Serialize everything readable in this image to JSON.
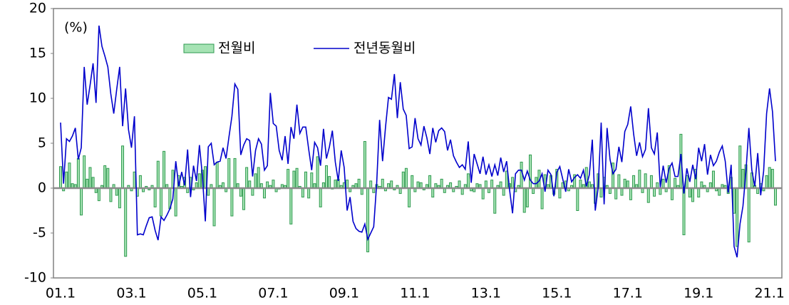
{
  "chart_data": {
    "type": "bar-line",
    "y_unit": "(%)",
    "categories": [
      "01.1",
      null,
      null,
      null,
      null,
      null,
      null,
      null,
      null,
      null,
      null,
      null,
      null,
      null,
      null,
      null,
      null,
      null,
      null,
      null,
      null,
      null,
      null,
      null,
      "03.1",
      null,
      null,
      null,
      null,
      null,
      null,
      null,
      null,
      null,
      null,
      null,
      null,
      null,
      null,
      null,
      null,
      null,
      null,
      null,
      null,
      null,
      null,
      null,
      "05.1",
      null,
      null,
      null,
      null,
      null,
      null,
      null,
      null,
      null,
      null,
      null,
      null,
      null,
      null,
      null,
      null,
      null,
      null,
      null,
      null,
      null,
      null,
      null,
      "07.1",
      null,
      null,
      null,
      null,
      null,
      null,
      null,
      null,
      null,
      null,
      null,
      null,
      null,
      null,
      null,
      null,
      null,
      null,
      null,
      null,
      null,
      null,
      null,
      "09.1",
      null,
      null,
      null,
      null,
      null,
      null,
      null,
      null,
      null,
      null,
      null,
      null,
      null,
      null,
      null,
      null,
      null,
      null,
      null,
      null,
      null,
      null,
      null,
      "11.1",
      null,
      null,
      null,
      null,
      null,
      null,
      null,
      null,
      null,
      null,
      null,
      null,
      null,
      null,
      null,
      null,
      null,
      null,
      null,
      null,
      null,
      null,
      null,
      "13.1",
      null,
      null,
      null,
      null,
      null,
      null,
      null,
      null,
      null,
      null,
      null,
      null,
      null,
      null,
      null,
      null,
      null,
      null,
      null,
      null,
      null,
      null,
      null,
      "15.1",
      null,
      null,
      null,
      null,
      null,
      null,
      null,
      null,
      null,
      null,
      null,
      null,
      null,
      null,
      null,
      null,
      null,
      null,
      null,
      null,
      null,
      null,
      null,
      "17.1",
      null,
      null,
      null,
      null,
      null,
      null,
      null,
      null,
      null,
      null,
      null,
      null,
      null,
      null,
      null,
      null,
      null,
      null,
      null,
      null,
      null,
      null,
      null,
      "19.1",
      null,
      null,
      null,
      null,
      null,
      null,
      null,
      null,
      null,
      null,
      null,
      null,
      null,
      null,
      null,
      null,
      null,
      null,
      null,
      null,
      null,
      null,
      null,
      "21.1",
      null,
      null
    ],
    "series": [
      {
        "name": "전월비",
        "kind": "bar",
        "color": "#a6e3b4",
        "edge": "#2f9a4f",
        "values": [
          2.4,
          -0.3,
          1.8,
          2.8,
          0.5,
          0.4,
          3.3,
          -3.0,
          3.6,
          1.0,
          2.3,
          1.2,
          -0.5,
          -1.4,
          0.3,
          2.5,
          2.2,
          -1.5,
          0.4,
          -0.8,
          -2.2,
          4.7,
          -7.6,
          0.3,
          -0.3,
          1.8,
          -0.9,
          1.4,
          -0.4,
          0.2,
          -0.2,
          0.3,
          -2.1,
          3.0,
          -3.1,
          4.1,
          0.4,
          -2.3,
          2.0,
          -3.1,
          1.4,
          0.2,
          1.2,
          -0.5,
          1.2,
          -0.2,
          0.6,
          1.6,
          2.0,
          2.4,
          -0.8,
          0.4,
          -4.2,
          2.9,
          0.3,
          0.6,
          -0.4,
          3.3,
          -3.1,
          3.3,
          0.5,
          -0.9,
          -2.4,
          2.3,
          0.8,
          -0.8,
          1.6,
          2.3,
          0.5,
          -1.1,
          0.7,
          0.3,
          0.9,
          -0.4,
          -0.1,
          0.4,
          0.3,
          2.1,
          -4.0,
          1.9,
          2.2,
          0.2,
          -1.0,
          1.8,
          -1.1,
          1.7,
          0.5,
          3.5,
          -2.1,
          0.6,
          2.5,
          1.3,
          -0.1,
          0.9,
          1.0,
          0.3,
          0.6,
          0.9,
          -0.4,
          0.3,
          0.5,
          1.0,
          -0.7,
          5.2,
          -7.1,
          0.8,
          -0.5,
          0.4,
          0.2,
          1.0,
          -0.3,
          0.5,
          0.8,
          -0.2,
          0.3,
          -0.6,
          1.8,
          2.2,
          -2.1,
          1.4,
          -0.4,
          0.7,
          0.6,
          -0.2,
          0.4,
          1.4,
          -1.0,
          0.5,
          0.3,
          1.0,
          -0.5,
          0.3,
          0.6,
          -0.4,
          0.2,
          0.8,
          -0.7,
          0.4,
          1.6,
          -0.3,
          -0.4,
          0.5,
          0.4,
          -1.2,
          0.8,
          -0.5,
          0.9,
          -2.8,
          0.3,
          0.7,
          -0.8,
          1.9,
          0.5,
          1.2,
          -0.4,
          0.3,
          2.9,
          -2.7,
          -2.1,
          3.7,
          -0.6,
          1.2,
          2.0,
          -2.3,
          1.5,
          0.4,
          1.4,
          -0.7,
          2.1,
          -1.1,
          0.6,
          0.8,
          -0.3,
          0.3,
          1.5,
          -2.5,
          0.9,
          0.4,
          2.3,
          0.7,
          0.4,
          -1.7,
          1.6,
          -1.0,
          1.2,
          0.3,
          -0.6,
          2.8,
          -1.2,
          1.5,
          -0.8,
          1.0,
          0.8,
          -1.3,
          1.4,
          0.4,
          2.0,
          -0.5,
          1.6,
          -1.6,
          1.4,
          -0.9,
          0.6,
          -0.7,
          1.0,
          -0.4,
          2.5,
          -1.3,
          1.1,
          0.3,
          6.0,
          -5.2,
          1.4,
          -1.0,
          -1.5,
          2.1,
          -1.0,
          0.7,
          0.3,
          -0.4,
          0.6,
          1.9,
          -0.3,
          -0.8,
          0.4,
          0.3,
          -0.6,
          1.2,
          -2.8,
          -6.5,
          4.7,
          2.1,
          2.6,
          -6.0,
          1.7,
          0.3,
          -0.6,
          0.5,
          -0.3,
          1.4,
          2.3,
          2.1,
          -1.9
        ]
      },
      {
        "name": "전년동월비",
        "kind": "line",
        "color": "#0000cc",
        "values": [
          7.3,
          0.5,
          5.5,
          5.2,
          5.8,
          6.7,
          3.2,
          4.5,
          13.5,
          9.3,
          11.5,
          13.9,
          9.5,
          18.1,
          15.8,
          14.7,
          13.5,
          10.5,
          8.3,
          11.0,
          13.5,
          6.9,
          11.1,
          6.5,
          4.5,
          8.0,
          -5.2,
          -5.1,
          -5.2,
          -4.2,
          -3.3,
          -3.2,
          -4.7,
          -5.8,
          -3.2,
          -3.6,
          -3.0,
          -2.3,
          -1.2,
          3.0,
          0.2,
          1.8,
          0.3,
          4.3,
          -1.0,
          2.5,
          0.8,
          4.8,
          1.4,
          -3.7,
          4.6,
          5.0,
          2.6,
          2.9,
          3.0,
          4.5,
          3.3,
          5.7,
          8.0,
          11.6,
          11.0,
          3.7,
          4.8,
          5.5,
          5.3,
          1.3,
          4.2,
          5.5,
          4.9,
          2.0,
          2.5,
          10.6,
          7.2,
          6.9,
          4.2,
          3.1,
          5.8,
          2.7,
          6.8,
          5.5,
          9.3,
          6.1,
          6.8,
          6.8,
          4.3,
          2.0,
          5.1,
          4.5,
          2.5,
          6.6,
          3.3,
          4.6,
          6.4,
          2.9,
          0.8,
          4.2,
          2.3,
          -2.5,
          -1.0,
          -3.7,
          -4.5,
          -4.8,
          -4.9,
          -4.0,
          -5.7,
          -5.0,
          -4.3,
          0.5,
          7.6,
          3.0,
          6.8,
          10.1,
          9.9,
          12.7,
          7.8,
          11.8,
          8.8,
          8.1,
          4.4,
          4.6,
          7.8,
          5.5,
          4.8,
          6.9,
          5.6,
          3.8,
          6.7,
          5.1,
          6.4,
          6.7,
          6.3,
          4.2,
          5.4,
          3.6,
          2.9,
          2.3,
          2.6,
          2.1,
          5.2,
          0.6,
          3.8,
          2.7,
          1.6,
          3.5,
          1.5,
          2.6,
          1.3,
          2.6,
          1.4,
          3.4,
          1.8,
          3.0,
          -0.2,
          -2.8,
          1.6,
          2.0,
          2.0,
          0.9,
          1.9,
          0.9,
          0.5,
          0.5,
          0.8,
          1.6,
          -0.4,
          2.0,
          1.5,
          -0.9,
          1.8,
          2.4,
          1.0,
          -0.4,
          2.1,
          0.7,
          1.2,
          1.5,
          1.1,
          2.0,
          0.2,
          1.5,
          5.4,
          -2.5,
          0.1,
          7.3,
          -1.8,
          6.7,
          3.2,
          1.6,
          2.1,
          4.6,
          2.9,
          6.3,
          7.1,
          9.1,
          6.0,
          3.6,
          5.1,
          3.5,
          4.3,
          8.9,
          4.5,
          3.8,
          6.2,
          0.1,
          2.5,
          0.6,
          2.2,
          2.8,
          1.3,
          1.3,
          3.8,
          -0.6,
          2.2,
          0.7,
          2.6,
          1.0,
          4.5,
          3.0,
          4.9,
          1.5,
          3.7,
          2.5,
          3.0,
          4.0,
          4.7,
          3.0,
          -0.5,
          2.6,
          -6.5,
          -7.7,
          -4.0,
          -2.0,
          1.8,
          6.7,
          2.0,
          0.2,
          3.9,
          -0.8,
          1.9,
          8.3,
          11.1,
          8.5,
          3.0
        ]
      }
    ],
    "ylim": [
      -10,
      20
    ],
    "yticks": [
      -10,
      -5,
      0,
      5,
      10,
      15,
      20
    ],
    "grid": false
  }
}
